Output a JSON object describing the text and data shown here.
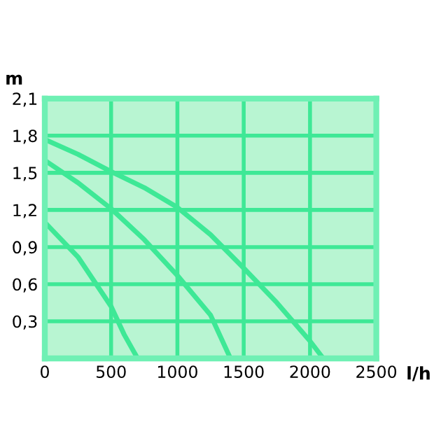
{
  "chart_data": {
    "type": "line",
    "xlabel": "l/h",
    "ylabel": "m",
    "series": [
      {
        "color": "#3ee896",
        "x": [
          0,
          250,
          500,
          750,
          1000,
          1250,
          1500,
          1750,
          2000,
          2100
        ],
        "values": [
          1.77,
          1.65,
          1.51,
          1.38,
          1.22,
          1.0,
          0.73,
          0.45,
          0.14,
          0
        ]
      },
      {
        "color": "#3ee896",
        "x": [
          0,
          250,
          500,
          750,
          1000,
          1250,
          1400
        ],
        "values": [
          1.6,
          1.42,
          1.21,
          0.96,
          0.67,
          0.35,
          0
        ]
      },
      {
        "color": "#3ee896",
        "x": [
          0,
          250,
          500,
          600,
          700
        ],
        "values": [
          1.1,
          0.82,
          0.42,
          0.19,
          0
        ]
      }
    ],
    "xlim": [
      0,
      2500
    ],
    "ylim": [
      0,
      2.1
    ],
    "xticks": [
      0,
      500,
      1000,
      1500,
      2000,
      2500
    ],
    "yticks": [
      {
        "value": 0.3,
        "label": "0,3"
      },
      {
        "value": 0.6,
        "label": "0,6"
      },
      {
        "value": 0.9,
        "label": "0,9"
      },
      {
        "value": 1.2,
        "label": "1,2"
      },
      {
        "value": 1.5,
        "label": "1,5"
      },
      {
        "value": 1.8,
        "label": "1,8"
      },
      {
        "value": 2.1,
        "label": "2,1"
      }
    ],
    "grid": true
  }
}
